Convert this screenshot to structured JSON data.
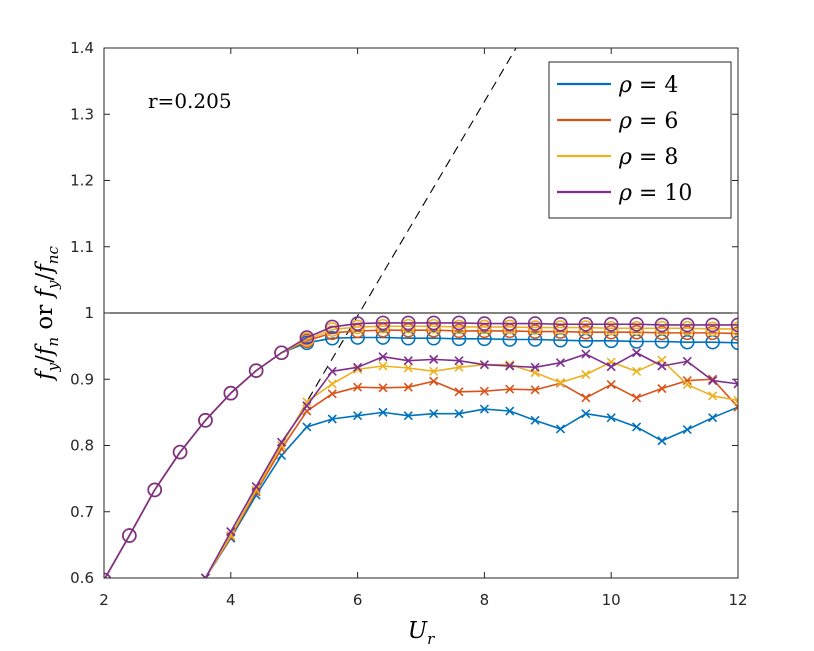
{
  "chart_data": {
    "type": "line",
    "title": "",
    "annotation": "r=0.205",
    "xlabel": {
      "base": "U",
      "sub": "r"
    },
    "ylabel": {
      "parts": [
        {
          "base": "f",
          "sub": "y"
        },
        {
          "sep": "/"
        },
        {
          "base": "f",
          "sub": "n"
        },
        {
          "sep": " or "
        },
        {
          "base": "f",
          "sub": "y"
        },
        {
          "sep": "/"
        },
        {
          "base": "f",
          "sub": "nc"
        }
      ]
    },
    "xlim": [
      2,
      12
    ],
    "ylim": [
      0.6,
      1.4
    ],
    "xticks": [
      2,
      4,
      6,
      8,
      10,
      12
    ],
    "yticks": [
      0.6,
      0.7,
      0.8,
      0.9,
      1.0,
      1.1,
      1.2,
      1.3,
      1.4
    ],
    "ytick_labels": [
      "0.6",
      "0.7",
      "0.8",
      "0.9",
      "1",
      "1.1",
      "1.2",
      "1.3",
      "1.4"
    ],
    "reference_lines": [
      {
        "name": "unity-line",
        "style": "solid",
        "points": [
          [
            2,
            1.0
          ],
          [
            12,
            1.0
          ]
        ]
      },
      {
        "name": "strouhal-line",
        "style": "dashed",
        "points": [
          [
            5.1,
            0.85
          ],
          [
            8.5,
            1.4
          ]
        ]
      }
    ],
    "legend": {
      "position": "top-right",
      "symbol": "ρ",
      "op": "="
    },
    "series": [
      {
        "name": "ρ = 4",
        "value": "4",
        "color": "#0072BD",
        "circles": {
          "x": [
            2.0,
            2.4,
            2.8,
            3.2,
            3.6,
            4.0,
            4.4,
            4.8,
            5.2,
            5.6,
            6.0,
            6.4,
            6.8,
            7.2,
            7.6,
            8.0,
            8.4,
            8.8,
            9.2,
            9.6,
            10.0,
            10.4,
            10.8,
            11.2,
            11.6,
            12.0
          ],
          "y": [
            0.597,
            0.664,
            0.733,
            0.79,
            0.838,
            0.879,
            0.913,
            0.94,
            0.955,
            0.962,
            0.963,
            0.963,
            0.962,
            0.962,
            0.961,
            0.961,
            0.96,
            0.96,
            0.959,
            0.958,
            0.958,
            0.957,
            0.957,
            0.956,
            0.956,
            0.955
          ]
        },
        "crosses": {
          "x": [
            3.6,
            4.0,
            4.4,
            4.8,
            5.2,
            5.6,
            6.0,
            6.4,
            6.8,
            7.2,
            7.6,
            8.0,
            8.4,
            8.8,
            9.2,
            9.6,
            10.0,
            10.4,
            10.8,
            11.2,
            11.6,
            12.0
          ],
          "y": [
            0.6,
            0.66,
            0.725,
            0.785,
            0.828,
            0.84,
            0.845,
            0.85,
            0.845,
            0.848,
            0.848,
            0.855,
            0.852,
            0.838,
            0.825,
            0.848,
            0.842,
            0.828,
            0.807,
            0.824,
            0.842,
            0.858
          ]
        }
      },
      {
        "name": "ρ = 6",
        "value": "6",
        "color": "#D95319",
        "circles": {
          "x": [
            2.0,
            2.4,
            2.8,
            3.2,
            3.6,
            4.0,
            4.4,
            4.8,
            5.2,
            5.6,
            6.0,
            6.4,
            6.8,
            7.2,
            7.6,
            8.0,
            8.4,
            8.8,
            9.2,
            9.6,
            10.0,
            10.4,
            10.8,
            11.2,
            11.6,
            12.0
          ],
          "y": [
            0.597,
            0.664,
            0.733,
            0.79,
            0.838,
            0.879,
            0.913,
            0.94,
            0.958,
            0.97,
            0.973,
            0.974,
            0.974,
            0.974,
            0.973,
            0.973,
            0.973,
            0.972,
            0.972,
            0.971,
            0.971,
            0.971,
            0.97,
            0.97,
            0.97,
            0.969
          ]
        },
        "crosses": {
          "x": [
            3.6,
            4.0,
            4.4,
            4.8,
            5.2,
            5.6,
            6.0,
            6.4,
            6.8,
            7.2,
            7.6,
            8.0,
            8.4,
            8.8,
            9.2,
            9.6,
            10.0,
            10.4,
            10.8,
            11.2,
            11.6,
            12.0
          ],
          "y": [
            0.6,
            0.662,
            0.73,
            0.795,
            0.852,
            0.878,
            0.888,
            0.887,
            0.888,
            0.897,
            0.881,
            0.882,
            0.885,
            0.884,
            0.894,
            0.872,
            0.892,
            0.872,
            0.886,
            0.898,
            0.9,
            0.858
          ]
        }
      },
      {
        "name": "ρ = 8",
        "value": "8",
        "color": "#EDB120",
        "circles": {
          "x": [
            2.0,
            2.4,
            2.8,
            3.2,
            3.6,
            4.0,
            4.4,
            4.8,
            5.2,
            5.6,
            6.0,
            6.4,
            6.8,
            7.2,
            7.6,
            8.0,
            8.4,
            8.8,
            9.2,
            9.6,
            10.0,
            10.4,
            10.8,
            11.2,
            11.6,
            12.0
          ],
          "y": [
            0.597,
            0.664,
            0.733,
            0.79,
            0.838,
            0.879,
            0.913,
            0.94,
            0.96,
            0.975,
            0.979,
            0.98,
            0.98,
            0.98,
            0.979,
            0.979,
            0.979,
            0.978,
            0.978,
            0.978,
            0.977,
            0.977,
            0.977,
            0.977,
            0.976,
            0.976
          ]
        },
        "crosses": {
          "x": [
            3.6,
            4.0,
            4.4,
            4.8,
            5.2,
            5.6,
            6.0,
            6.4,
            6.8,
            7.2,
            7.6,
            8.0,
            8.4,
            8.8,
            9.2,
            9.6,
            10.0,
            10.4,
            10.8,
            11.2,
            11.6,
            12.0
          ],
          "y": [
            0.6,
            0.664,
            0.733,
            0.8,
            0.866,
            0.893,
            0.915,
            0.92,
            0.917,
            0.912,
            0.918,
            0.922,
            0.922,
            0.91,
            0.895,
            0.907,
            0.926,
            0.912,
            0.929,
            0.892,
            0.875,
            0.868
          ]
        }
      },
      {
        "name": "ρ = 10",
        "value": "10",
        "color": "#7E2F8E",
        "circles": {
          "x": [
            2.0,
            2.4,
            2.8,
            3.2,
            3.6,
            4.0,
            4.4,
            4.8,
            5.2,
            5.6,
            6.0,
            6.4,
            6.8,
            7.2,
            7.6,
            8.0,
            8.4,
            8.8,
            9.2,
            9.6,
            10.0,
            10.4,
            10.8,
            11.2,
            11.6,
            12.0
          ],
          "y": [
            0.597,
            0.664,
            0.733,
            0.79,
            0.838,
            0.879,
            0.913,
            0.94,
            0.963,
            0.979,
            0.984,
            0.985,
            0.985,
            0.985,
            0.985,
            0.984,
            0.984,
            0.984,
            0.983,
            0.983,
            0.983,
            0.983,
            0.982,
            0.982,
            0.982,
            0.982
          ]
        },
        "crosses": {
          "x": [
            3.6,
            4.0,
            4.4,
            4.8,
            5.2,
            5.6,
            6.0,
            6.4,
            6.8,
            7.2,
            7.6,
            8.0,
            8.4,
            8.8,
            9.2,
            9.6,
            10.0,
            10.4,
            10.8,
            11.2,
            11.6,
            12.0
          ],
          "y": [
            0.6,
            0.67,
            0.738,
            0.805,
            0.86,
            0.912,
            0.918,
            0.934,
            0.928,
            0.93,
            0.928,
            0.922,
            0.92,
            0.918,
            0.925,
            0.938,
            0.919,
            0.94,
            0.92,
            0.927,
            0.898,
            0.893
          ]
        }
      }
    ]
  }
}
